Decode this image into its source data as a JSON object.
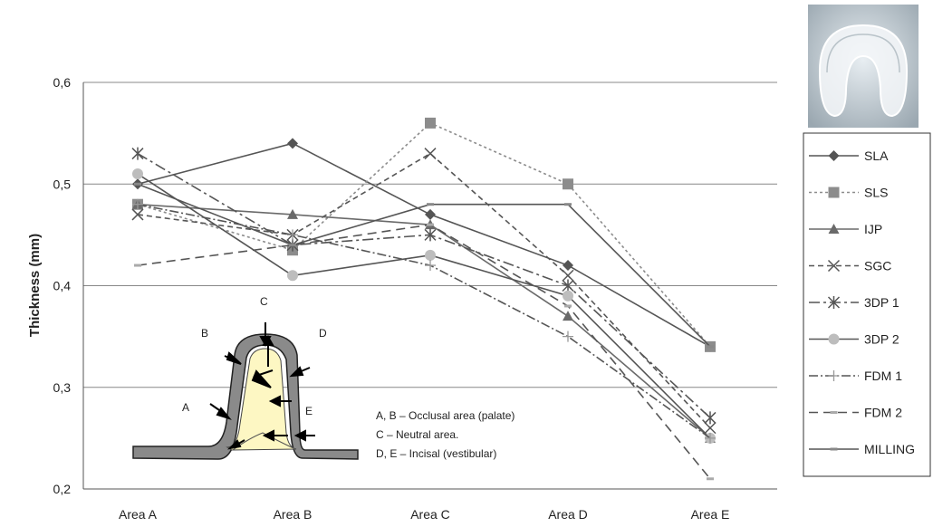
{
  "chart_data": {
    "type": "line",
    "ylabel": "Thickness  (mm)",
    "xlabel": "",
    "categories": [
      "Area A",
      "Area B",
      "Area C",
      "Area D",
      "Area E"
    ],
    "ylim": [
      0.2,
      0.6
    ],
    "yticks": [
      0.2,
      0.3,
      0.4,
      0.5,
      0.6
    ],
    "ytick_labels": [
      "0,2",
      "0,3",
      "0,4",
      "0,5",
      "0,6"
    ],
    "grid": "horizontal",
    "legend_position": "right",
    "series": [
      {
        "name": "SLA",
        "values": [
          0.5,
          0.54,
          0.47,
          0.42,
          0.34
        ],
        "color": "#555555",
        "dash": "",
        "marker": "diamond"
      },
      {
        "name": "SLS",
        "values": [
          0.48,
          0.435,
          0.56,
          0.5,
          0.34
        ],
        "color": "#8c8c8c",
        "dash": "3,3",
        "marker": "square"
      },
      {
        "name": "IJP",
        "values": [
          0.48,
          0.47,
          0.46,
          0.37,
          0.25
        ],
        "color": "#6a6a6a",
        "dash": "",
        "marker": "triangle"
      },
      {
        "name": "SGC",
        "values": [
          0.47,
          0.45,
          0.53,
          0.41,
          0.26
        ],
        "color": "#555555",
        "dash": "6,4",
        "marker": "x"
      },
      {
        "name": "3DP 1",
        "values": [
          0.53,
          0.44,
          0.45,
          0.4,
          0.27
        ],
        "color": "#555555",
        "dash": "12,4,3,4",
        "marker": "star"
      },
      {
        "name": "3DP 2",
        "values": [
          0.51,
          0.41,
          0.43,
          0.39,
          0.25
        ],
        "color": "#555555",
        "dash": "",
        "marker": "circle"
      },
      {
        "name": "FDM 1",
        "values": [
          0.48,
          0.45,
          0.42,
          0.35,
          0.25
        ],
        "color": "#555555",
        "dash": "10,3,2,3",
        "marker": "plus"
      },
      {
        "name": "FDM 2",
        "values": [
          0.42,
          0.44,
          0.46,
          0.38,
          0.21
        ],
        "color": "#555555",
        "dash": "10,6",
        "marker": "dash"
      },
      {
        "name": "MILLING",
        "values": [
          0.5,
          0.44,
          0.48,
          0.48,
          0.34
        ],
        "color": "#555555",
        "dash": "",
        "marker": "none"
      }
    ]
  },
  "inset": {
    "letters": [
      "A",
      "B",
      "C",
      "D",
      "E"
    ],
    "notes": [
      "A, B – Occlusal area (palate)",
      "C – Neutral area.",
      "D, E – Incisal (vestibular)"
    ]
  },
  "photo": {
    "description_icon": "dental-splint-photo"
  }
}
